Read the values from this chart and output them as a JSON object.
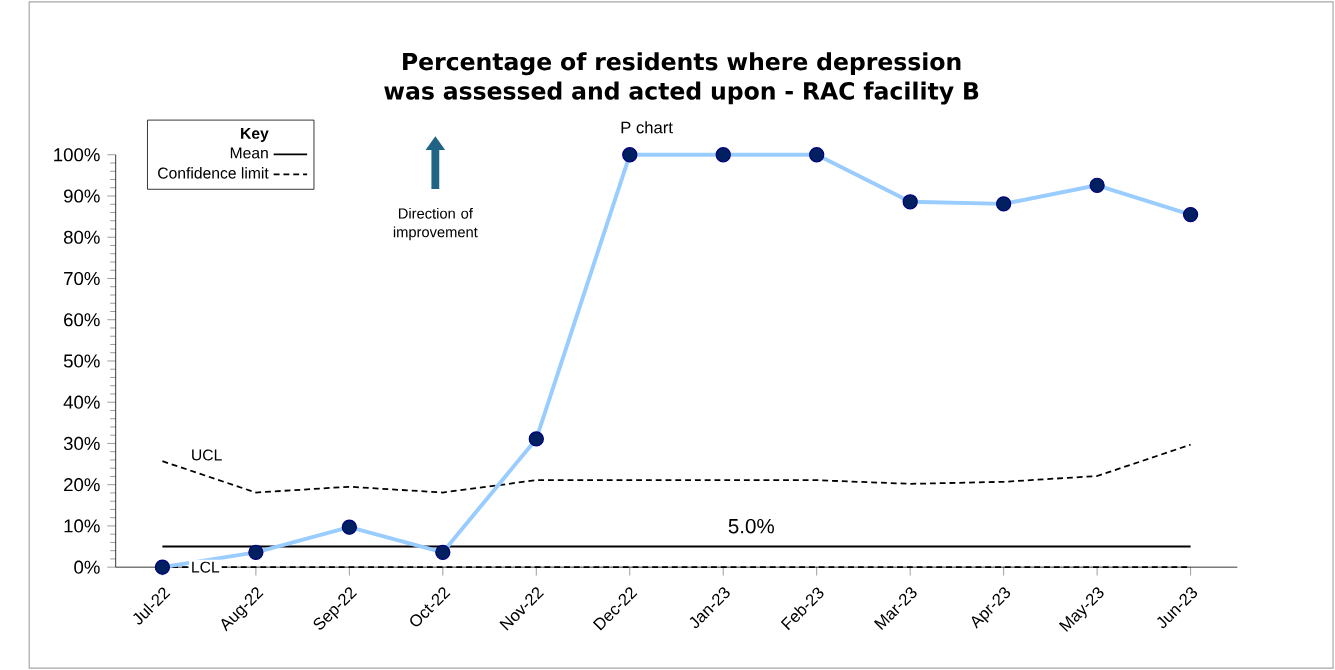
{
  "chart_data": {
    "type": "line",
    "title": "Percentage of residents where depression was assessed and acted upon - RAC facility B",
    "categories": [
      "Jul-22",
      "Aug-22",
      "Sep-22",
      "Oct-22",
      "Nov-22",
      "Dec-22",
      "Jan-23",
      "Feb-23",
      "Mar-23",
      "Apr-23",
      "May-23",
      "Jun-23"
    ],
    "series": [
      {
        "color": "#99ccff",
        "marker": "circle",
        "line_style": "solid",
        "values": [
          0,
          3.6,
          9.7,
          3.6,
          31.1,
          100,
          100,
          100,
          88.6,
          88.1,
          92.6,
          85.5
        ]
      },
      {
        "name": "Confidence limit",
        "color": "#000000",
        "marker": "none",
        "line_style": "dashed",
        "values": [
          25.7,
          18.1,
          19.5,
          18.1,
          21.1,
          21.1,
          21.1,
          21.1,
          20.2,
          20.7,
          22.1,
          29.7
        ]
      },
      {
        "color": "#000000",
        "marker": "none",
        "line_style": "dashed",
        "values": [
          0,
          0,
          0,
          0,
          0,
          0,
          0,
          0,
          0,
          0,
          0,
          0
        ]
      }
    ],
    "ylim": [
      0,
      100
    ],
    "yticks": [
      {
        "value": 0,
        "label": "0%"
      },
      {
        "value": 10,
        "label": "10%"
      },
      {
        "value": 20,
        "label": "20%"
      },
      {
        "value": 30,
        "label": "30%"
      },
      {
        "value": 40,
        "label": "40%"
      },
      {
        "value": 50,
        "label": "50%"
      },
      {
        "value": 60,
        "label": "60%"
      },
      {
        "value": 70,
        "label": "70%"
      },
      {
        "value": 80,
        "label": "80%"
      },
      {
        "value": 90,
        "label": "90%"
      },
      {
        "value": 100,
        "label": "100%"
      }
    ],
    "ref_lines": [
      {
        "axis": "y",
        "value": 5.0,
        "label": "Mean",
        "color": "#000000",
        "line_style": "solid"
      }
    ],
    "legend": "top left",
    "legend_title": "Key",
    "annotations": [
      {
        "text": "P chart",
        "x": "Dec-22",
        "y": 100
      },
      "Direction of improvement",
      {
        "text": "UCL",
        "x": "Jul-22",
        "y": 25.7
      },
      {
        "text": "LCL",
        "x": "Jul-22",
        "y": 0
      },
      {
        "text": "5.0%",
        "x": "Feb-23",
        "y": 5.0
      }
    ],
    "grid": false
  }
}
